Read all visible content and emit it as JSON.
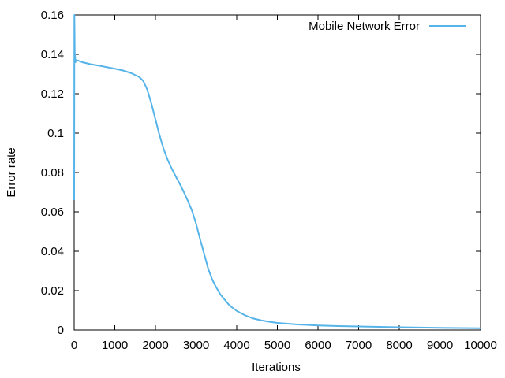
{
  "chart_data": {
    "type": "line",
    "title": "",
    "xlabel": "Iterations",
    "ylabel": "Error rate",
    "xlim": [
      0,
      10000
    ],
    "ylim": [
      0,
      0.16
    ],
    "x_ticks": [
      0,
      1000,
      2000,
      3000,
      4000,
      5000,
      6000,
      7000,
      8000,
      9000,
      10000
    ],
    "x_tick_labels": [
      "0",
      "1000",
      "2000",
      "3000",
      "4000",
      "5000",
      "6000",
      "7000",
      "8000",
      "9000",
      "10000"
    ],
    "y_ticks": [
      0,
      0.02,
      0.04,
      0.06,
      0.08,
      0.1,
      0.12,
      0.14,
      0.16
    ],
    "y_tick_labels": [
      "0",
      "0.02",
      "0.04",
      "0.06",
      "0.08",
      "0.1",
      "0.12",
      "0.14",
      "0.16"
    ],
    "grid": false,
    "legend_position": "top-right",
    "series": [
      {
        "name": "Mobile Network Error",
        "color": "#56b4e9",
        "x": [
          0,
          5,
          10,
          15,
          20,
          30,
          50,
          100,
          200,
          400,
          600,
          800,
          1000,
          1200,
          1400,
          1600,
          1700,
          1800,
          1900,
          2000,
          2100,
          2200,
          2300,
          2400,
          2500,
          2600,
          2700,
          2800,
          2900,
          3000,
          3100,
          3200,
          3300,
          3400,
          3500,
          3600,
          3700,
          3800,
          3900,
          4000,
          4200,
          4400,
          4600,
          4800,
          5000,
          5500,
          6000,
          6500,
          7000,
          8000,
          9000,
          10000
        ],
        "y": [
          0.066,
          0.16,
          0.15,
          0.138,
          0.14,
          0.136,
          0.137,
          0.1368,
          0.136,
          0.135,
          0.1343,
          0.1335,
          0.1327,
          0.1318,
          0.1305,
          0.1285,
          0.1265,
          0.122,
          0.115,
          0.107,
          0.099,
          0.092,
          0.0865,
          0.082,
          0.078,
          0.0742,
          0.07,
          0.0655,
          0.0605,
          0.054,
          0.046,
          0.0385,
          0.031,
          0.0255,
          0.0215,
          0.018,
          0.0155,
          0.013,
          0.0112,
          0.0097,
          0.0075,
          0.0059,
          0.0049,
          0.0042,
          0.0036,
          0.0028,
          0.0023,
          0.002,
          0.0018,
          0.0014,
          0.0011,
          0.0009
        ]
      }
    ]
  }
}
